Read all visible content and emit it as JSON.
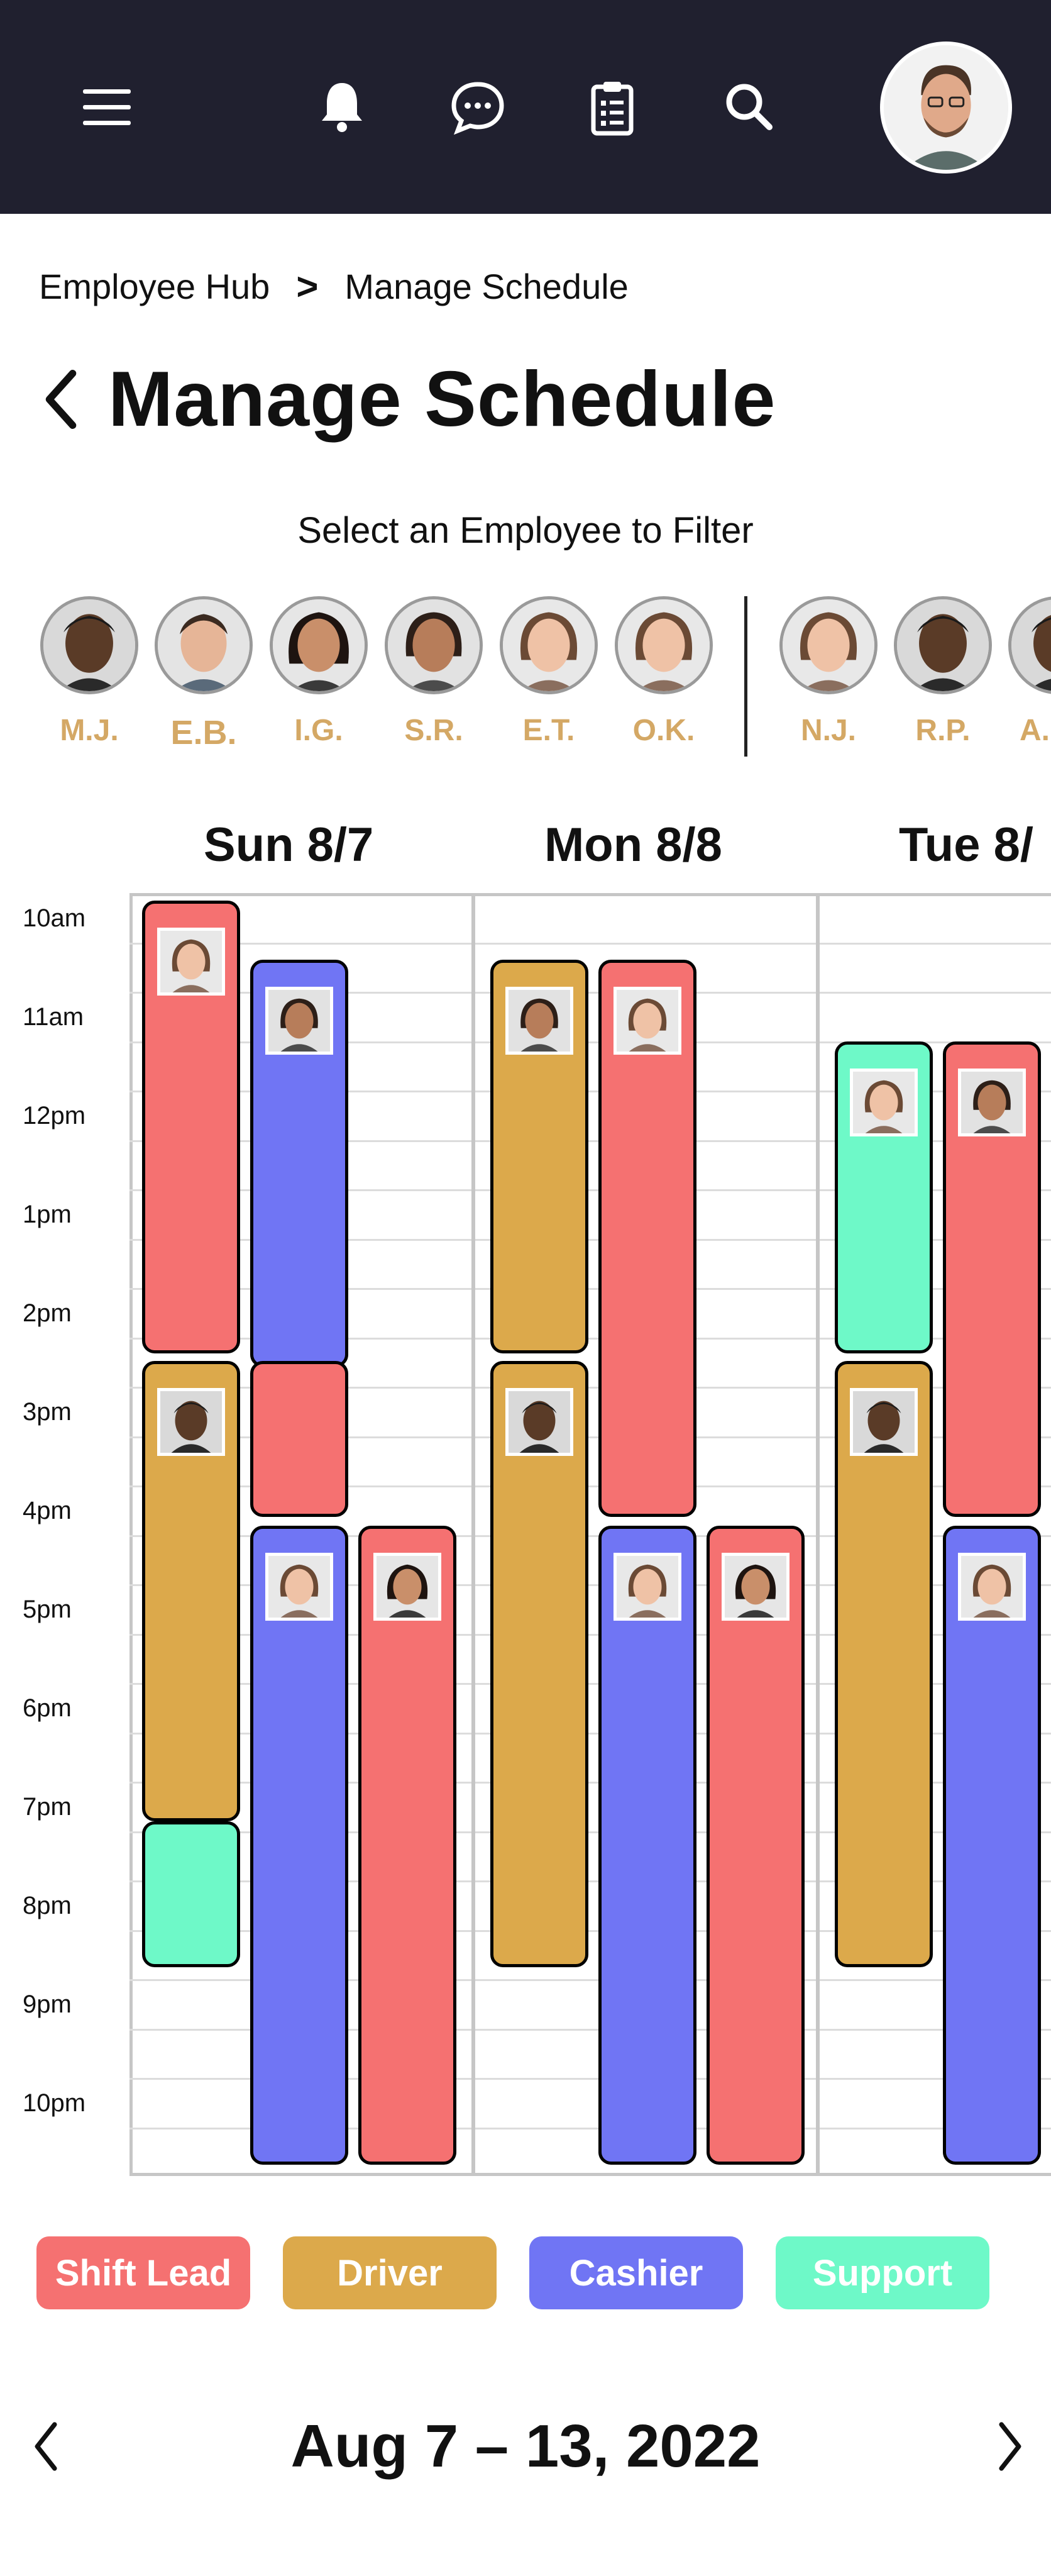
{
  "topbar": {
    "bg": "#20202f",
    "icons": [
      "menu-icon",
      "bell-icon",
      "chat-icon",
      "clipboard-icon",
      "search-icon"
    ]
  },
  "breadcrumb": {
    "parent": "Employee Hub",
    "separator": ">",
    "current": "Manage Schedule"
  },
  "page": {
    "title": "Manage Schedule"
  },
  "filter": {
    "label": "Select an Employee to Filter",
    "employees": [
      {
        "initials": "M.J."
      },
      {
        "initials": "E.B."
      },
      {
        "initials": "I.G."
      },
      {
        "initials": "S.R."
      },
      {
        "initials": "E.T."
      },
      {
        "initials": "O.K."
      },
      {
        "initials": "N.J."
      },
      {
        "initials": "R.P."
      },
      {
        "initials": "A."
      }
    ]
  },
  "schedule": {
    "days": [
      "Sun 8/7",
      "Mon 8/8",
      "Tue 8/"
    ],
    "hours": [
      "10am",
      "11am",
      "12pm",
      "1pm",
      "2pm",
      "3pm",
      "4pm",
      "5pm",
      "6pm",
      "7pm",
      "8pm",
      "9pm",
      "10pm"
    ]
  },
  "legend": {
    "shift_lead": "Shift Lead",
    "driver": "Driver",
    "cashier": "Cashier",
    "support": "Support",
    "colors": {
      "shift_lead": "#f57171",
      "driver": "#dca94b",
      "cashier": "#7075f4",
      "support": "#6ef9c8"
    }
  },
  "week": {
    "label": "Aug 7 – 13, 2022"
  }
}
